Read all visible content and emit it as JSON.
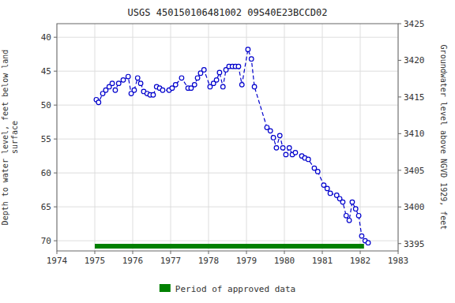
{
  "chart_data": {
    "type": "line",
    "title": "USGS 450150106481002 09S40E23BCCD02",
    "y_label": "Depth to water level, feet below land\nsurface",
    "y2_label": "Groundwater level above NGVD 1929, feet",
    "x": [
      1975.04,
      1975.1,
      1975.21,
      1975.29,
      1975.38,
      1975.46,
      1975.54,
      1975.63,
      1975.75,
      1975.88,
      1975.96,
      1976.04,
      1976.13,
      1976.21,
      1976.29,
      1976.38,
      1976.46,
      1976.54,
      1976.63,
      1976.71,
      1976.79,
      1976.96,
      1977.04,
      1977.13,
      1977.29,
      1977.46,
      1977.54,
      1977.63,
      1977.71,
      1977.79,
      1977.88,
      1978.04,
      1978.13,
      1978.21,
      1978.29,
      1978.38,
      1978.46,
      1978.54,
      1978.63,
      1978.71,
      1978.79,
      1978.88,
      1979.04,
      1979.13,
      1979.21,
      1979.54,
      1979.63,
      1979.71,
      1979.79,
      1979.88,
      1979.96,
      1980.04,
      1980.13,
      1980.21,
      1980.29,
      1980.46,
      1980.54,
      1980.63,
      1980.79,
      1980.88,
      1981.04,
      1981.13,
      1981.21,
      1981.38,
      1981.46,
      1981.54,
      1981.63,
      1981.71,
      1981.79,
      1981.88,
      1981.96,
      1982.04,
      1982.13,
      1982.21
    ],
    "series": [
      {
        "color": "#0000cc",
        "marker": "circle",
        "line_style": "dashed",
        "values": [
          49.2,
          49.6,
          48.3,
          47.8,
          47.3,
          46.8,
          47.8,
          46.8,
          46.3,
          45.8,
          48.3,
          47.8,
          46.0,
          46.8,
          48.0,
          48.3,
          48.5,
          48.5,
          47.3,
          47.5,
          47.8,
          47.8,
          47.5,
          47.0,
          46.0,
          47.5,
          47.5,
          47.0,
          46.0,
          45.3,
          44.8,
          47.3,
          46.8,
          46.3,
          45.2,
          47.3,
          44.8,
          44.3,
          44.3,
          44.3,
          44.3,
          47.0,
          41.8,
          43.2,
          47.3,
          53.3,
          53.8,
          54.8,
          56.3,
          54.5,
          56.3,
          57.3,
          56.3,
          57.3,
          57.0,
          57.5,
          57.8,
          58.0,
          59.3,
          59.8,
          61.8,
          62.3,
          63.0,
          63.3,
          63.8,
          64.3,
          66.3,
          67.0,
          64.3,
          65.3,
          66.3,
          69.3,
          70.0,
          70.3
        ]
      }
    ],
    "approved_period": {
      "name": "Period of approved data",
      "color": "#008000",
      "x": [
        1975.0,
        1982.1
      ]
    },
    "xlim": [
      1974,
      1983
    ],
    "xticks": [
      1974,
      1975,
      1976,
      1977,
      1978,
      1979,
      1980,
      1981,
      1982,
      1983
    ],
    "ylim": [
      71.5,
      38.0
    ],
    "yticks": [
      40,
      45,
      50,
      55,
      60,
      65,
      70
    ],
    "y2lim": [
      3394,
      3425
    ],
    "y2ticks": [
      3395,
      3400,
      3405,
      3410,
      3415,
      3420,
      3425
    ],
    "grid": true,
    "legend": "bottom"
  }
}
